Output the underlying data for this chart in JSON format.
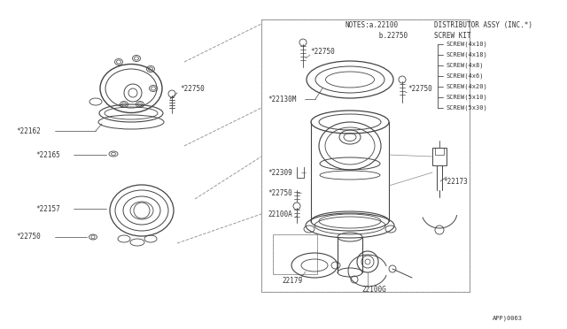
{
  "bg_color": "#ffffff",
  "lc": "#444444",
  "tc": "#333333",
  "page_code": "APP)0063",
  "notes_line1_left": "NOTES:a.22100",
  "notes_line1_right": "DISTRIBUTOR ASSY (INC.*)",
  "notes_line2_left": "      b.22750",
  "notes_line2_right": "SCREW KIT",
  "screw_items": [
    "SCREW(4x10)",
    "SCREW(4x18)",
    "SCREW(4x8)",
    "SCREW(4x6)",
    "SCREW(4x20)",
    "SCREW(5x10)",
    "SCREW(5x30)"
  ]
}
